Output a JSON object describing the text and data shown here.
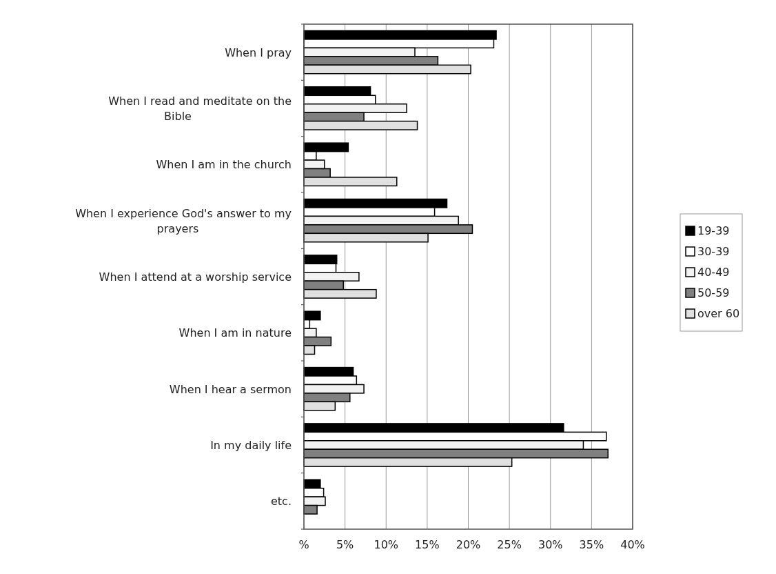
{
  "chart_data": {
    "type": "bar",
    "orientation": "horizontal",
    "categories": [
      "When I pray",
      "When I read and meditate on the Bible",
      "When I am in the church",
      "When I experience God's answer to my prayers",
      "When I attend at a worship service",
      "When I am in nature",
      "When I hear a sermon",
      "In my daily life",
      "etc."
    ],
    "series": [
      {
        "name": "19-39",
        "color": "#000000",
        "values": [
          23.4,
          8.1,
          5.4,
          17.4,
          4.0,
          2.0,
          6.0,
          31.6,
          2.0
        ]
      },
      {
        "name": "30-39",
        "color": "#ffffff",
        "values": [
          23.1,
          8.7,
          1.5,
          15.9,
          3.9,
          0.7,
          6.4,
          36.8,
          2.4
        ]
      },
      {
        "name": "40-49",
        "color": "#f2f2f2",
        "values": [
          13.5,
          12.5,
          2.5,
          18.8,
          6.7,
          1.5,
          7.3,
          34.0,
          2.6
        ]
      },
      {
        "name": "50-59",
        "color": "#808080",
        "values": [
          16.3,
          7.3,
          3.2,
          20.5,
          4.8,
          3.3,
          5.6,
          37.0,
          1.6
        ]
      },
      {
        "name": "over 60",
        "color": "#e0e0e0",
        "values": [
          20.3,
          13.8,
          11.3,
          15.1,
          8.8,
          1.3,
          3.8,
          25.3,
          null
        ]
      }
    ],
    "xlim": [
      0,
      40
    ],
    "xticks": [
      {
        "value": 0,
        "label": "%"
      },
      {
        "value": 5,
        "label": "5%"
      },
      {
        "value": 10,
        "label": "10%"
      },
      {
        "value": 15,
        "label": "15%"
      },
      {
        "value": 20,
        "label": "20%"
      },
      {
        "value": 25,
        "label": "25%"
      },
      {
        "value": 30,
        "label": "30%"
      },
      {
        "value": 35,
        "label": "35%"
      },
      {
        "value": 40,
        "label": "40%"
      }
    ],
    "grid": "x",
    "legend": "right"
  }
}
